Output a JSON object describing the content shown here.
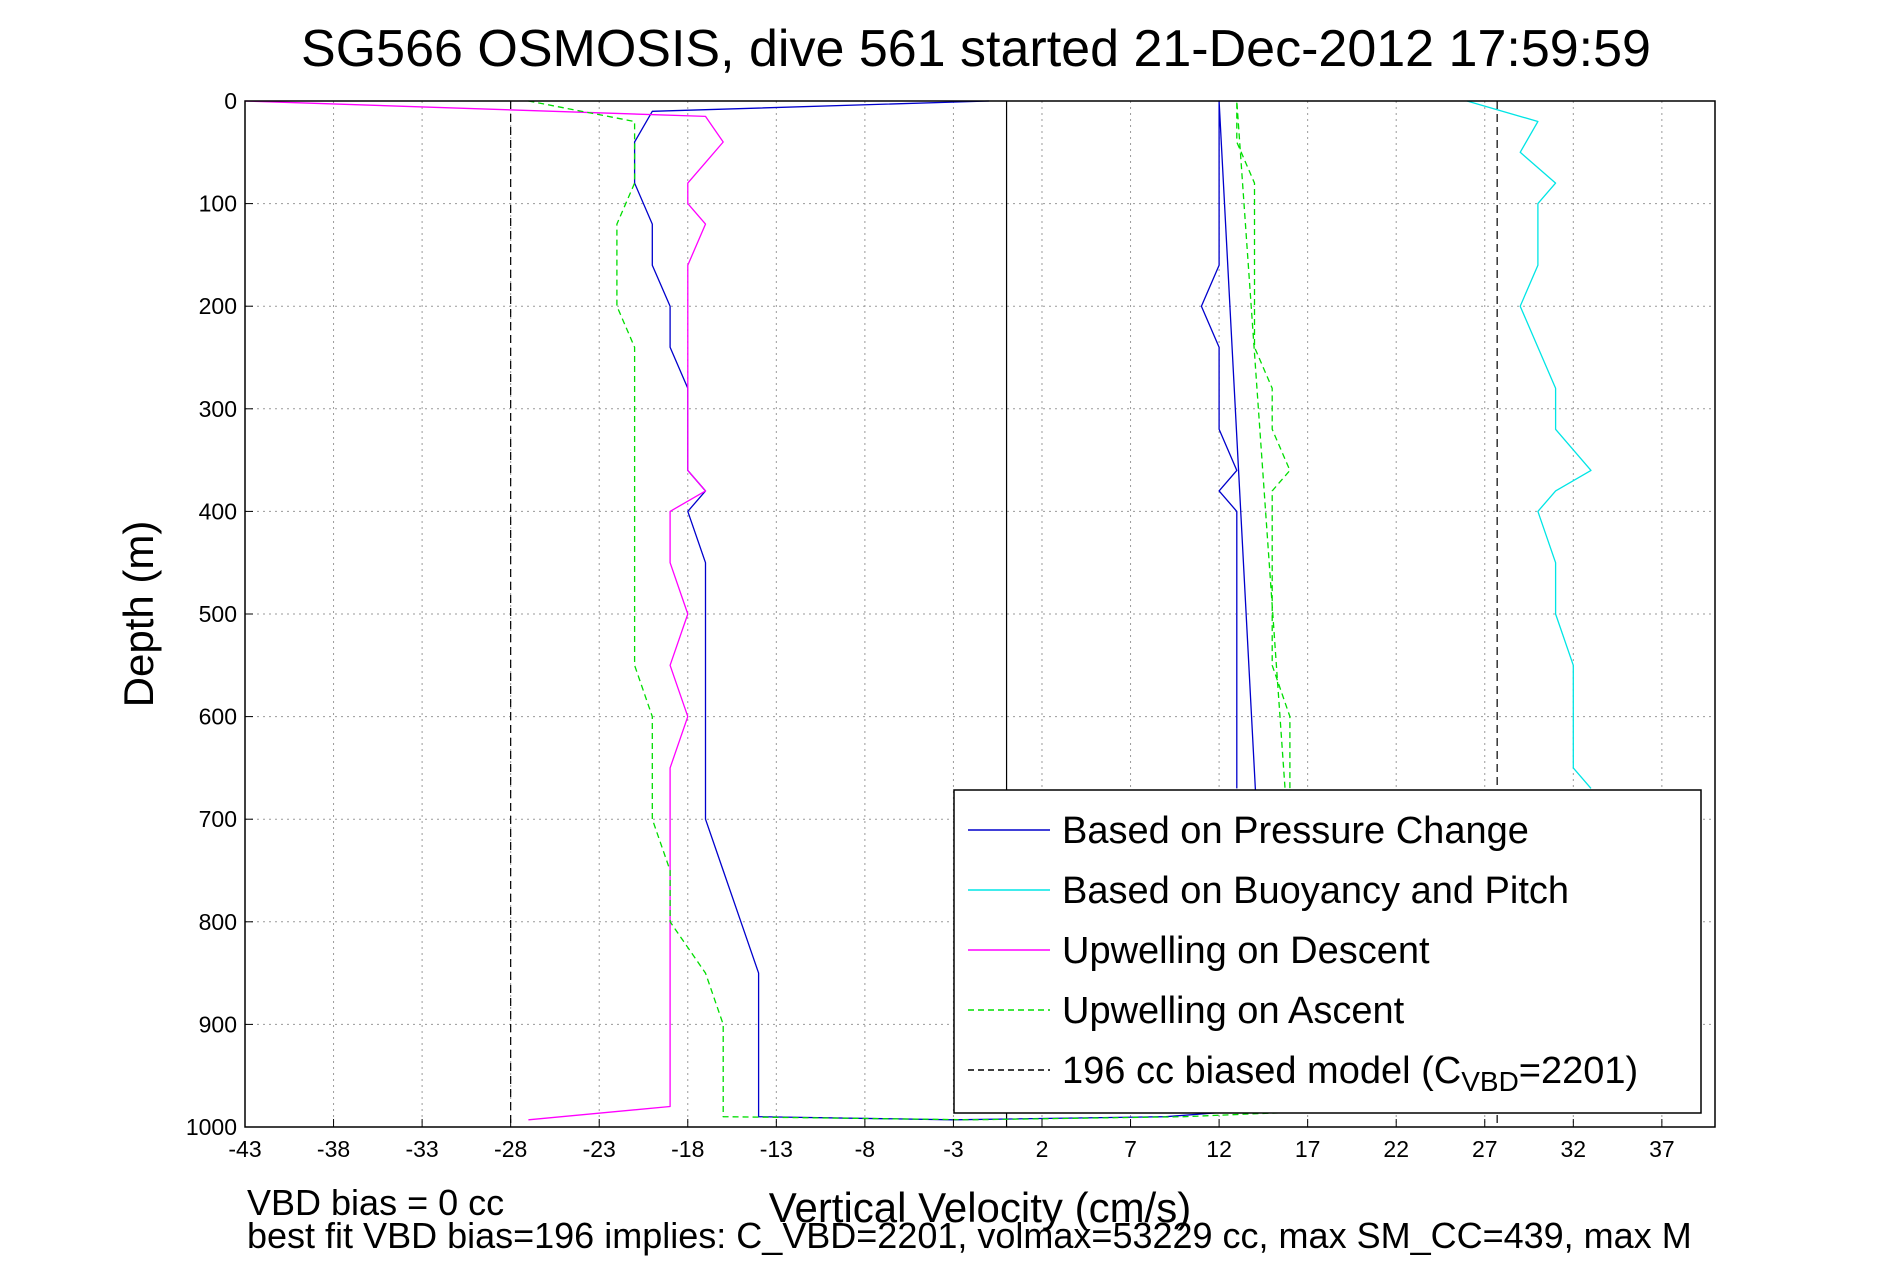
{
  "chart_data": {
    "type": "line",
    "title": "SG566 OSMOSIS, dive 561 started 21-Dec-2012 17:59:59",
    "xlabel": "Vertical Velocity (cm/s)",
    "ylabel": "Depth (m)",
    "xlim": [
      -43,
      40
    ],
    "ylim": [
      0,
      1000
    ],
    "y_reversed": true,
    "xticks": [
      -43,
      -38,
      -33,
      -28,
      -23,
      -18,
      -13,
      -8,
      -3,
      2,
      7,
      12,
      17,
      22,
      27,
      32,
      37
    ],
    "yticks": [
      0,
      100,
      200,
      300,
      400,
      500,
      600,
      700,
      800,
      900,
      1000
    ],
    "grid": true,
    "legend_position": "bottom-right",
    "reference_lines": [
      {
        "x": -28,
        "color": "#000000",
        "style": "dashed"
      },
      {
        "x": 0,
        "color": "#000000",
        "style": "solid"
      },
      {
        "x": 27.7,
        "color": "#000000",
        "style": "dashed"
      }
    ],
    "series": [
      {
        "name": "Based on Pressure Change",
        "color": "#0000cc",
        "style": "solid",
        "points": [
          [
            -1,
            0
          ],
          [
            -20,
            10
          ],
          [
            -21,
            40
          ],
          [
            -21,
            80
          ],
          [
            -20,
            120
          ],
          [
            -20,
            160
          ],
          [
            -19,
            200
          ],
          [
            -19,
            240
          ],
          [
            -18,
            280
          ],
          [
            -18,
            320
          ],
          [
            -18,
            360
          ],
          [
            -17,
            380
          ],
          [
            -18,
            400
          ],
          [
            -17,
            450
          ],
          [
            -17,
            500
          ],
          [
            -17,
            550
          ],
          [
            -17,
            600
          ],
          [
            -17,
            650
          ],
          [
            -17,
            700
          ],
          [
            -16,
            750
          ],
          [
            -15,
            800
          ],
          [
            -14,
            850
          ],
          [
            -14,
            900
          ],
          [
            -14,
            950
          ],
          [
            -14,
            990
          ],
          [
            -3,
            993
          ],
          [
            9,
            990
          ],
          [
            15,
            982
          ],
          [
            12,
            0
          ],
          [
            12,
            10
          ],
          [
            12,
            40
          ],
          [
            12,
            80
          ],
          [
            12,
            120
          ],
          [
            12,
            160
          ],
          [
            11,
            200
          ],
          [
            12,
            240
          ],
          [
            12,
            280
          ],
          [
            12,
            320
          ],
          [
            13,
            360
          ],
          [
            12,
            380
          ],
          [
            13,
            400
          ],
          [
            13,
            450
          ],
          [
            13,
            500
          ],
          [
            13,
            550
          ],
          [
            13,
            600
          ],
          [
            13,
            650
          ],
          [
            13,
            670
          ]
        ]
      },
      {
        "name": "Based on Buoyancy and Pitch",
        "color": "#00e5e5",
        "style": "solid",
        "points": [
          [
            26,
            0
          ],
          [
            30,
            20
          ],
          [
            29,
            50
          ],
          [
            31,
            80
          ],
          [
            30,
            100
          ],
          [
            30,
            130
          ],
          [
            30,
            160
          ],
          [
            29,
            200
          ],
          [
            30,
            240
          ],
          [
            31,
            280
          ],
          [
            31,
            320
          ],
          [
            33,
            360
          ],
          [
            31,
            380
          ],
          [
            30,
            400
          ],
          [
            31,
            450
          ],
          [
            31,
            500
          ],
          [
            32,
            550
          ],
          [
            32,
            600
          ],
          [
            32,
            650
          ],
          [
            33,
            670
          ]
        ]
      },
      {
        "name": "Upwelling on Descent",
        "color": "#ff00ff",
        "style": "solid",
        "points": [
          [
            -43,
            0
          ],
          [
            -17,
            15
          ],
          [
            -16,
            40
          ],
          [
            -17,
            60
          ],
          [
            -18,
            80
          ],
          [
            -18,
            100
          ],
          [
            -17,
            120
          ],
          [
            -18,
            160
          ],
          [
            -18,
            200
          ],
          [
            -18,
            240
          ],
          [
            -18,
            280
          ],
          [
            -18,
            320
          ],
          [
            -18,
            360
          ],
          [
            -17,
            380
          ],
          [
            -19,
            400
          ],
          [
            -19,
            450
          ],
          [
            -18,
            500
          ],
          [
            -19,
            550
          ],
          [
            -18,
            600
          ],
          [
            -19,
            650
          ],
          [
            -19,
            700
          ],
          [
            -19,
            750
          ],
          [
            -19,
            800
          ],
          [
            -19,
            850
          ],
          [
            -19,
            900
          ],
          [
            -19,
            950
          ],
          [
            -19,
            980
          ],
          [
            -27,
            993
          ]
        ]
      },
      {
        "name": "Upwelling on Ascent",
        "color": "#00dd00",
        "style": "dashed",
        "points": [
          [
            -27,
            0
          ],
          [
            -21,
            20
          ],
          [
            -21,
            50
          ],
          [
            -21,
            80
          ],
          [
            -22,
            120
          ],
          [
            -22,
            160
          ],
          [
            -22,
            200
          ],
          [
            -21,
            240
          ],
          [
            -21,
            280
          ],
          [
            -21,
            320
          ],
          [
            -21,
            360
          ],
          [
            -21,
            380
          ],
          [
            -21,
            400
          ],
          [
            -21,
            450
          ],
          [
            -21,
            500
          ],
          [
            -21,
            550
          ],
          [
            -20,
            600
          ],
          [
            -20,
            650
          ],
          [
            -20,
            700
          ],
          [
            -19,
            750
          ],
          [
            -19,
            800
          ],
          [
            -17,
            850
          ],
          [
            -16,
            900
          ],
          [
            -16,
            950
          ],
          [
            -16,
            990
          ],
          [
            -2,
            993
          ],
          [
            10,
            990
          ],
          [
            17,
            985
          ],
          [
            13,
            0
          ],
          [
            13,
            10
          ],
          [
            13,
            40
          ],
          [
            14,
            80
          ],
          [
            14,
            120
          ],
          [
            14,
            160
          ],
          [
            14,
            200
          ],
          [
            14,
            240
          ],
          [
            15,
            280
          ],
          [
            15,
            320
          ],
          [
            16,
            360
          ],
          [
            15,
            380
          ],
          [
            15,
            400
          ],
          [
            15,
            450
          ],
          [
            15,
            500
          ],
          [
            15,
            550
          ],
          [
            16,
            600
          ],
          [
            16,
            650
          ],
          [
            16,
            670
          ]
        ]
      },
      {
        "name": "196 cc biased model (C",
        "name_sub": "VBD",
        "name_suffix": "=2201)",
        "color": "#000000",
        "style": "dashed",
        "points": []
      }
    ]
  },
  "notes": {
    "line1": "VBD bias = 0 cc",
    "line2": "best fit VBD bias=196 implies: C_VBD=2201, volmax=53229 cc, max SM_CC=439, max M"
  }
}
